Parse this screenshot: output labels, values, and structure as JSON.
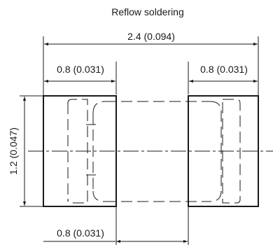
{
  "title": "Reflow soldering",
  "dimensions": {
    "overall_width": "2.4 (0.094)",
    "left_pad_width": "0.8 (0.031)",
    "right_pad_width": "0.8 (0.031)",
    "pad_gap": "0.8 (0.031)",
    "pad_height": "1.2 (0.047)"
  },
  "colors": {
    "line": "#1a1a1a",
    "background": "#ffffff"
  }
}
